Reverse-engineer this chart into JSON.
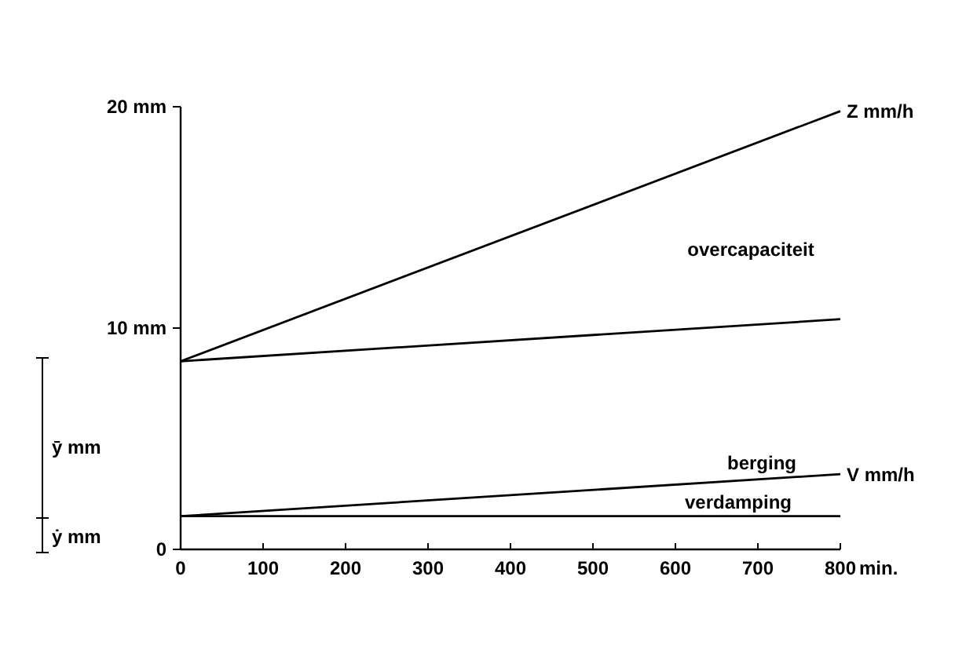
{
  "chart_data": {
    "type": "line",
    "xlabel": "min.",
    "x": [
      0,
      800
    ],
    "series": [
      {
        "name": "Z mm/h",
        "color": "#000000",
        "values": [
          8.5,
          19.8
        ]
      },
      {
        "color": "#000000",
        "values": [
          8.5,
          10.4
        ]
      },
      {
        "name": "V mm/h",
        "color": "#000000",
        "values": [
          1.5,
          3.4
        ]
      },
      {
        "color": "#000000",
        "values": [
          1.5,
          1.5
        ]
      }
    ],
    "xlim": [
      0,
      800
    ],
    "xticks": [
      0,
      100,
      200,
      300,
      400,
      500,
      600,
      700,
      800
    ],
    "ylim": [
      0,
      20
    ],
    "yticks": [
      {
        "value": 0,
        "label": "0"
      },
      {
        "value": 10,
        "label": "10 mm"
      },
      {
        "value": 20,
        "label": "20 mm"
      }
    ],
    "annotations": [
      "overcapaciteit",
      "berging",
      "verdamping",
      "ȳ mm",
      "ẏ mm"
    ],
    "grid": false,
    "marker": "none",
    "line_style": "solid"
  }
}
